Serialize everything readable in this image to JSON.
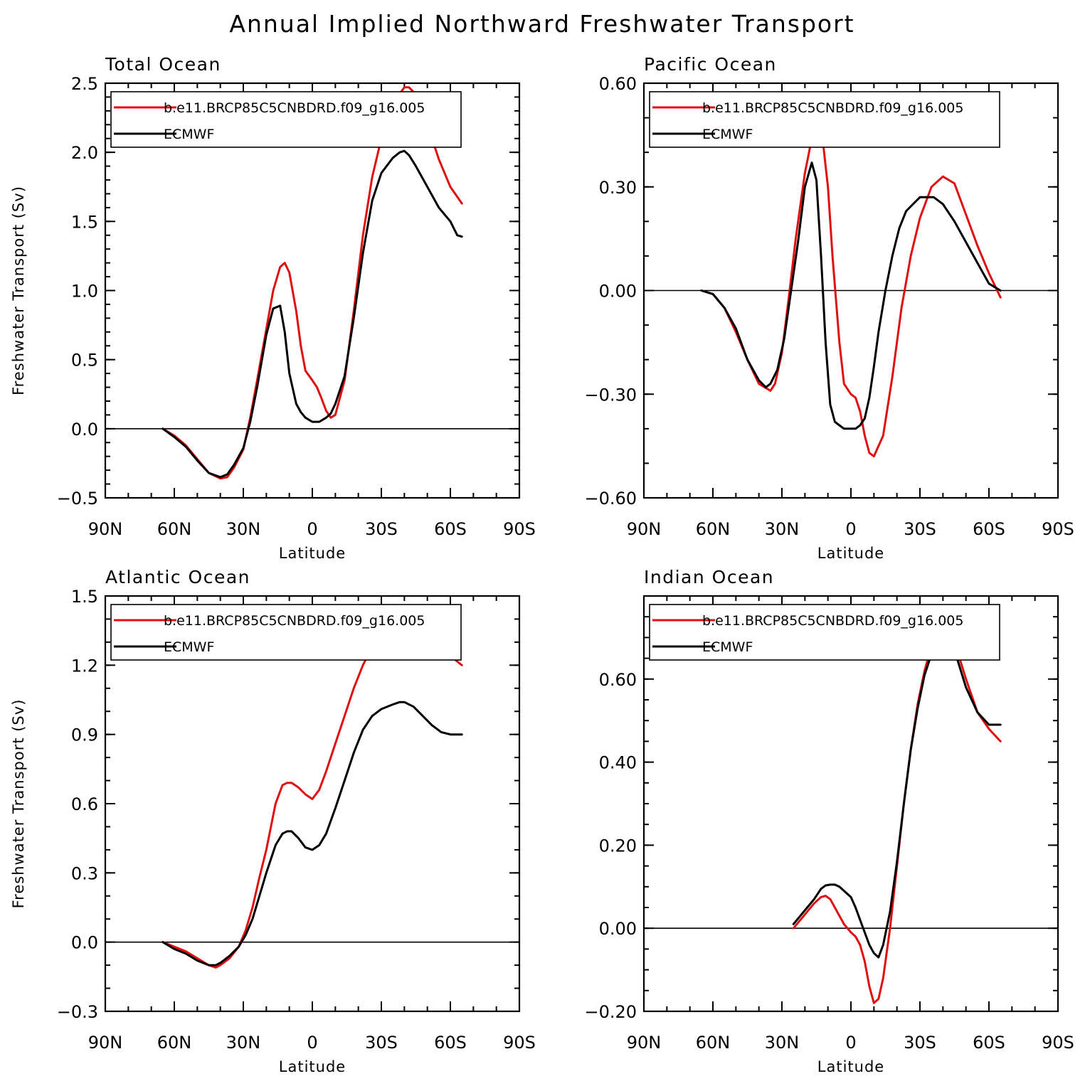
{
  "figure": {
    "title": "Annual Implied Northward Freshwater Transport"
  },
  "chart_data": [
    {
      "type": "line",
      "title": "Total Ocean",
      "xlabel": "Latitude",
      "ylabel": "Freshwater Transport (Sv)",
      "xlim": [
        90,
        -90
      ],
      "ylim": [
        -0.5,
        2.5
      ],
      "x_ticks": [
        90,
        60,
        30,
        0,
        -30,
        -60,
        -90
      ],
      "x_tick_labels": [
        "90N",
        "60N",
        "30N",
        "0",
        "30S",
        "60S",
        "90S"
      ],
      "y_ticks": [
        -0.5,
        0.0,
        0.5,
        1.0,
        1.5,
        2.0,
        2.5
      ],
      "y_tick_labels": [
        "−0.5",
        "0.0",
        "0.5",
        "1.0",
        "1.5",
        "2.0",
        "2.5"
      ],
      "y_minor_step": 0.1,
      "zero_line": true,
      "series": [
        {
          "name": "b.e11.BRCP85C5CNBDRD.f09_g16.005",
          "color": "#e01010",
          "x": [
            65,
            60,
            55,
            50,
            45,
            40,
            37,
            34,
            30,
            27,
            24,
            20,
            17,
            14,
            12,
            10,
            7,
            5,
            3,
            0,
            -2,
            -4,
            -6,
            -8,
            -10,
            -14,
            -18,
            -22,
            -26,
            -30,
            -35,
            -40,
            -42,
            -45,
            -50,
            -55,
            -60,
            -65
          ],
          "y": [
            0.0,
            -0.05,
            -0.12,
            -0.22,
            -0.32,
            -0.36,
            -0.35,
            -0.28,
            -0.15,
            0.08,
            0.35,
            0.72,
            1.0,
            1.17,
            1.2,
            1.13,
            0.85,
            0.6,
            0.42,
            0.35,
            0.3,
            0.22,
            0.13,
            0.08,
            0.1,
            0.35,
            0.85,
            1.4,
            1.82,
            2.1,
            2.35,
            2.47,
            2.47,
            2.42,
            2.2,
            1.95,
            1.75,
            1.63
          ]
        },
        {
          "name": "ECMWF",
          "color": "#000000",
          "x": [
            65,
            60,
            55,
            50,
            45,
            40,
            37,
            34,
            30,
            27,
            24,
            20,
            17,
            14,
            12,
            10,
            7,
            5,
            3,
            0,
            -3,
            -6,
            -8,
            -10,
            -14,
            -18,
            -22,
            -26,
            -30,
            -35,
            -38,
            -40,
            -42,
            -45,
            -50,
            -55,
            -60,
            -63,
            -65
          ],
          "y": [
            0.0,
            -0.06,
            -0.13,
            -0.23,
            -0.32,
            -0.35,
            -0.33,
            -0.26,
            -0.14,
            0.05,
            0.3,
            0.68,
            0.87,
            0.89,
            0.7,
            0.4,
            0.18,
            0.12,
            0.08,
            0.05,
            0.05,
            0.08,
            0.11,
            0.18,
            0.38,
            0.8,
            1.27,
            1.65,
            1.85,
            1.96,
            2.0,
            2.01,
            1.98,
            1.9,
            1.75,
            1.6,
            1.5,
            1.4,
            1.39
          ]
        }
      ]
    },
    {
      "type": "line",
      "title": "Pacific Ocean",
      "xlabel": "Latitude",
      "ylabel": "",
      "xlim": [
        90,
        -90
      ],
      "ylim": [
        -0.6,
        0.6
      ],
      "x_ticks": [
        90,
        60,
        30,
        0,
        -30,
        -60,
        -90
      ],
      "x_tick_labels": [
        "90N",
        "60N",
        "30N",
        "0",
        "30S",
        "60S",
        "90S"
      ],
      "y_ticks": [
        -0.6,
        -0.3,
        0.0,
        0.3,
        0.6
      ],
      "y_tick_labels": [
        "−0.60",
        "−0.30",
        "0.00",
        "0.30",
        "0.60"
      ],
      "y_minor_step": 0.1,
      "zero_line": true,
      "series": [
        {
          "name": "b.e11.BRCP85C5CNBDRD.f09_g16.005",
          "color": "#e01010",
          "x": [
            65,
            60,
            55,
            50,
            45,
            40,
            35,
            33,
            30,
            27,
            24,
            20,
            17,
            14,
            12,
            10,
            8,
            5,
            3,
            0,
            -2,
            -4,
            -6,
            -8,
            -10,
            -14,
            -18,
            -22,
            -26,
            -30,
            -35,
            -40,
            -45,
            -50,
            -55,
            -60,
            -65
          ],
          "y": [
            0.0,
            -0.01,
            -0.05,
            -0.12,
            -0.2,
            -0.27,
            -0.29,
            -0.27,
            -0.18,
            -0.02,
            0.15,
            0.34,
            0.44,
            0.47,
            0.42,
            0.3,
            0.1,
            -0.15,
            -0.27,
            -0.3,
            -0.31,
            -0.35,
            -0.42,
            -0.47,
            -0.48,
            -0.42,
            -0.25,
            -0.05,
            0.1,
            0.21,
            0.3,
            0.33,
            0.31,
            0.22,
            0.13,
            0.05,
            -0.02
          ]
        },
        {
          "name": "ECMWF",
          "color": "#000000",
          "x": [
            65,
            60,
            55,
            50,
            45,
            40,
            37,
            35,
            32,
            29,
            26,
            23,
            20,
            17,
            15,
            13,
            11,
            9,
            7,
            5,
            3,
            0,
            -2,
            -4,
            -6,
            -8,
            -10,
            -12,
            -15,
            -18,
            -21,
            -24,
            -27,
            -30,
            -33,
            -36,
            -38,
            -40,
            -45,
            -50,
            -55,
            -60,
            -65
          ],
          "y": [
            0.0,
            -0.01,
            -0.05,
            -0.11,
            -0.2,
            -0.26,
            -0.28,
            -0.27,
            -0.23,
            -0.14,
            0.0,
            0.14,
            0.3,
            0.37,
            0.32,
            0.1,
            -0.15,
            -0.33,
            -0.38,
            -0.39,
            -0.4,
            -0.4,
            -0.4,
            -0.39,
            -0.37,
            -0.31,
            -0.22,
            -0.12,
            0.0,
            0.1,
            0.18,
            0.23,
            0.25,
            0.27,
            0.27,
            0.27,
            0.26,
            0.25,
            0.2,
            0.14,
            0.08,
            0.02,
            0.0
          ]
        }
      ]
    },
    {
      "type": "line",
      "title": "Atlantic Ocean",
      "xlabel": "Latitude",
      "ylabel": "Freshwater Transport (Sv)",
      "xlim": [
        90,
        -90
      ],
      "ylim": [
        -0.3,
        1.5
      ],
      "x_ticks": [
        90,
        60,
        30,
        0,
        -30,
        -60,
        -90
      ],
      "x_tick_labels": [
        "90N",
        "60N",
        "30N",
        "0",
        "30S",
        "60S",
        "90S"
      ],
      "y_ticks": [
        -0.3,
        0.0,
        0.3,
        0.6,
        0.9,
        1.2,
        1.5
      ],
      "y_tick_labels": [
        "−0.3",
        "0.0",
        "0.3",
        "0.6",
        "0.9",
        "1.2",
        "1.5"
      ],
      "y_minor_step": 0.1,
      "zero_line": true,
      "series": [
        {
          "name": "b.e11.BRCP85C5CNBDRD.f09_g16.005",
          "color": "#e01010",
          "x": [
            65,
            60,
            55,
            50,
            45,
            42,
            40,
            36,
            32,
            29,
            26,
            23,
            20,
            16,
            13,
            11,
            9,
            6,
            3,
            0,
            -3,
            -6,
            -10,
            -14,
            -18,
            -22,
            -26,
            -30,
            -35,
            -40,
            -42,
            -45,
            -50,
            -55,
            -60,
            -65
          ],
          "y": [
            0.0,
            -0.02,
            -0.04,
            -0.07,
            -0.1,
            -0.11,
            -0.1,
            -0.07,
            -0.02,
            0.05,
            0.15,
            0.28,
            0.4,
            0.6,
            0.68,
            0.69,
            0.69,
            0.67,
            0.64,
            0.62,
            0.66,
            0.74,
            0.86,
            0.98,
            1.1,
            1.2,
            1.28,
            1.33,
            1.38,
            1.41,
            1.41,
            1.39,
            1.34,
            1.29,
            1.24,
            1.2
          ]
        },
        {
          "name": "ECMWF",
          "color": "#000000",
          "x": [
            65,
            60,
            55,
            50,
            45,
            42,
            40,
            36,
            32,
            29,
            26,
            23,
            20,
            16,
            13,
            11,
            9,
            6,
            3,
            0,
            -3,
            -6,
            -10,
            -14,
            -18,
            -22,
            -26,
            -30,
            -35,
            -38,
            -40,
            -44,
            -48,
            -52,
            -56,
            -60,
            -65
          ],
          "y": [
            0.0,
            -0.03,
            -0.05,
            -0.08,
            -0.1,
            -0.1,
            -0.09,
            -0.06,
            -0.02,
            0.03,
            0.1,
            0.2,
            0.3,
            0.42,
            0.47,
            0.48,
            0.48,
            0.45,
            0.41,
            0.4,
            0.42,
            0.47,
            0.58,
            0.7,
            0.82,
            0.92,
            0.98,
            1.01,
            1.03,
            1.04,
            1.04,
            1.02,
            0.98,
            0.94,
            0.91,
            0.9,
            0.9
          ]
        }
      ]
    },
    {
      "type": "line",
      "title": "Indian Ocean",
      "xlabel": "Latitude",
      "ylabel": "",
      "xlim": [
        90,
        -90
      ],
      "ylim": [
        -0.2,
        0.8
      ],
      "x_ticks": [
        90,
        60,
        30,
        0,
        -30,
        -60,
        -90
      ],
      "x_tick_labels": [
        "90N",
        "60N",
        "30N",
        "0",
        "30S",
        "60S",
        "90S"
      ],
      "y_ticks": [
        -0.2,
        0.0,
        0.2,
        0.4,
        0.6
      ],
      "y_tick_labels": [
        "−0.20",
        "0.00",
        "0.20",
        "0.40",
        "0.60"
      ],
      "y_minor_step": 0.05,
      "zero_line": true,
      "series": [
        {
          "name": "b.e11.BRCP85C5CNBDRD.f09_g16.005",
          "color": "#e01010",
          "x": [
            25,
            22,
            19,
            16,
            13,
            11,
            9,
            7,
            5,
            3,
            0,
            -2,
            -4,
            -6,
            -8,
            -10,
            -12,
            -14,
            -17,
            -20,
            -23,
            -26,
            -29,
            -32,
            -35,
            -38,
            -40,
            -42,
            -45,
            -50,
            -55,
            -60,
            -65
          ],
          "y": [
            0.0,
            0.02,
            0.04,
            0.06,
            0.075,
            0.078,
            0.07,
            0.05,
            0.03,
            0.01,
            -0.01,
            -0.02,
            -0.04,
            -0.08,
            -0.14,
            -0.18,
            -0.17,
            -0.12,
            0.0,
            0.15,
            0.3,
            0.43,
            0.54,
            0.62,
            0.68,
            0.72,
            0.73,
            0.72,
            0.69,
            0.6,
            0.52,
            0.48,
            0.45
          ]
        },
        {
          "name": "ECMWF",
          "color": "#000000",
          "x": [
            25,
            22,
            19,
            16,
            13,
            11,
            9,
            7,
            5,
            3,
            0,
            -2,
            -4,
            -6,
            -8,
            -10,
            -12,
            -14,
            -17,
            -20,
            -23,
            -26,
            -29,
            -32,
            -35,
            -38,
            -40,
            -42,
            -45,
            -50,
            -55,
            -60,
            -65
          ],
          "y": [
            0.01,
            0.03,
            0.05,
            0.07,
            0.095,
            0.103,
            0.105,
            0.105,
            0.1,
            0.09,
            0.075,
            0.05,
            0.02,
            -0.01,
            -0.04,
            -0.06,
            -0.07,
            -0.04,
            0.04,
            0.16,
            0.3,
            0.43,
            0.53,
            0.61,
            0.66,
            0.69,
            0.7,
            0.7,
            0.67,
            0.58,
            0.52,
            0.49,
            0.49
          ]
        }
      ]
    }
  ]
}
